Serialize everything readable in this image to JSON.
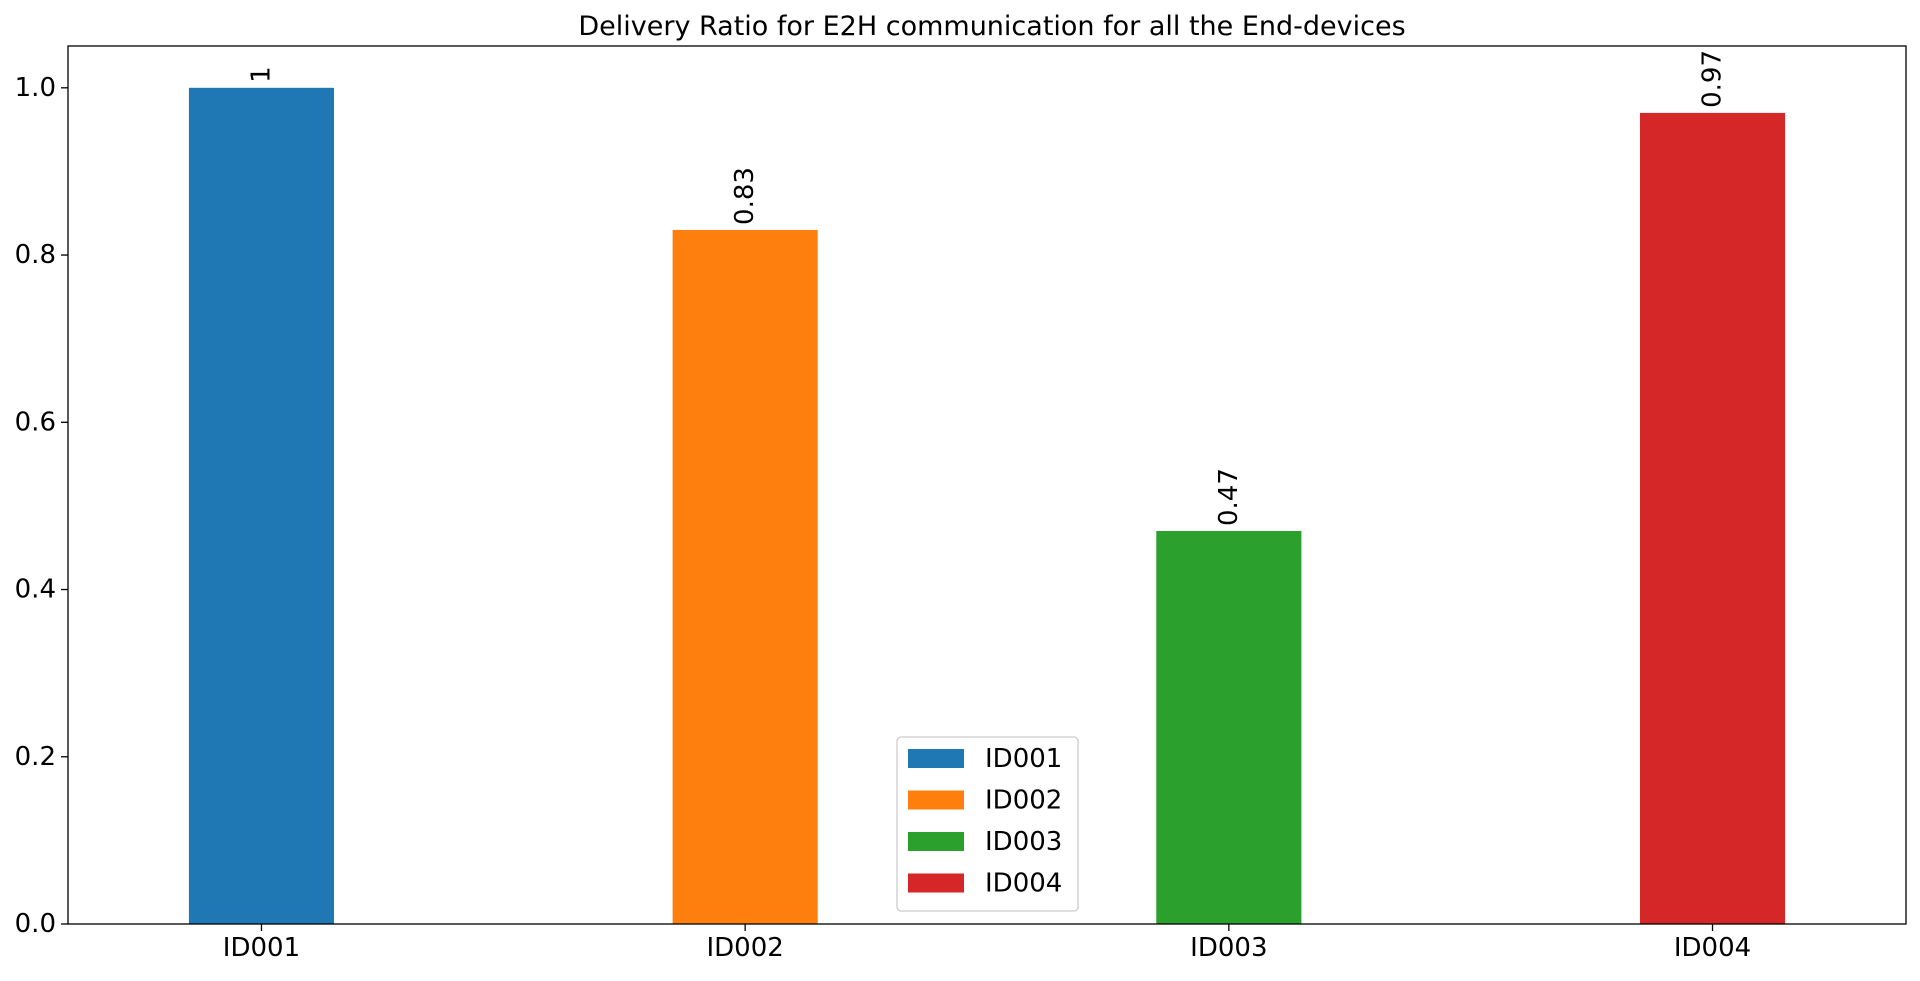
{
  "chart_data": {
    "type": "bar",
    "title": "Delivery Ratio for E2H communication for all the End-devices",
    "xlabel": "",
    "ylabel": "",
    "categories": [
      "ID001",
      "ID002",
      "ID003",
      "ID004"
    ],
    "series": [
      {
        "name": "ID001",
        "category": "ID001",
        "value": 1.0,
        "label": "1",
        "color": "#1f77b4"
      },
      {
        "name": "ID002",
        "category": "ID002",
        "value": 0.83,
        "label": "0.83",
        "color": "#ff7f0e"
      },
      {
        "name": "ID003",
        "category": "ID003",
        "value": 0.47,
        "label": "0.47",
        "color": "#2ca02c"
      },
      {
        "name": "ID004",
        "category": "ID004",
        "value": 0.97,
        "label": "0.97",
        "color": "#d62728"
      }
    ],
    "yticks": [
      {
        "value": 0.0,
        "label": "0.0"
      },
      {
        "value": 0.2,
        "label": "0.2"
      },
      {
        "value": 0.4,
        "label": "0.4"
      },
      {
        "value": 0.6,
        "label": "0.6"
      },
      {
        "value": 0.8,
        "label": "0.8"
      },
      {
        "value": 1.0,
        "label": "1.0"
      }
    ],
    "ylim": [
      0,
      1.05
    ],
    "grid": false,
    "legend_position": "lower-center"
  }
}
